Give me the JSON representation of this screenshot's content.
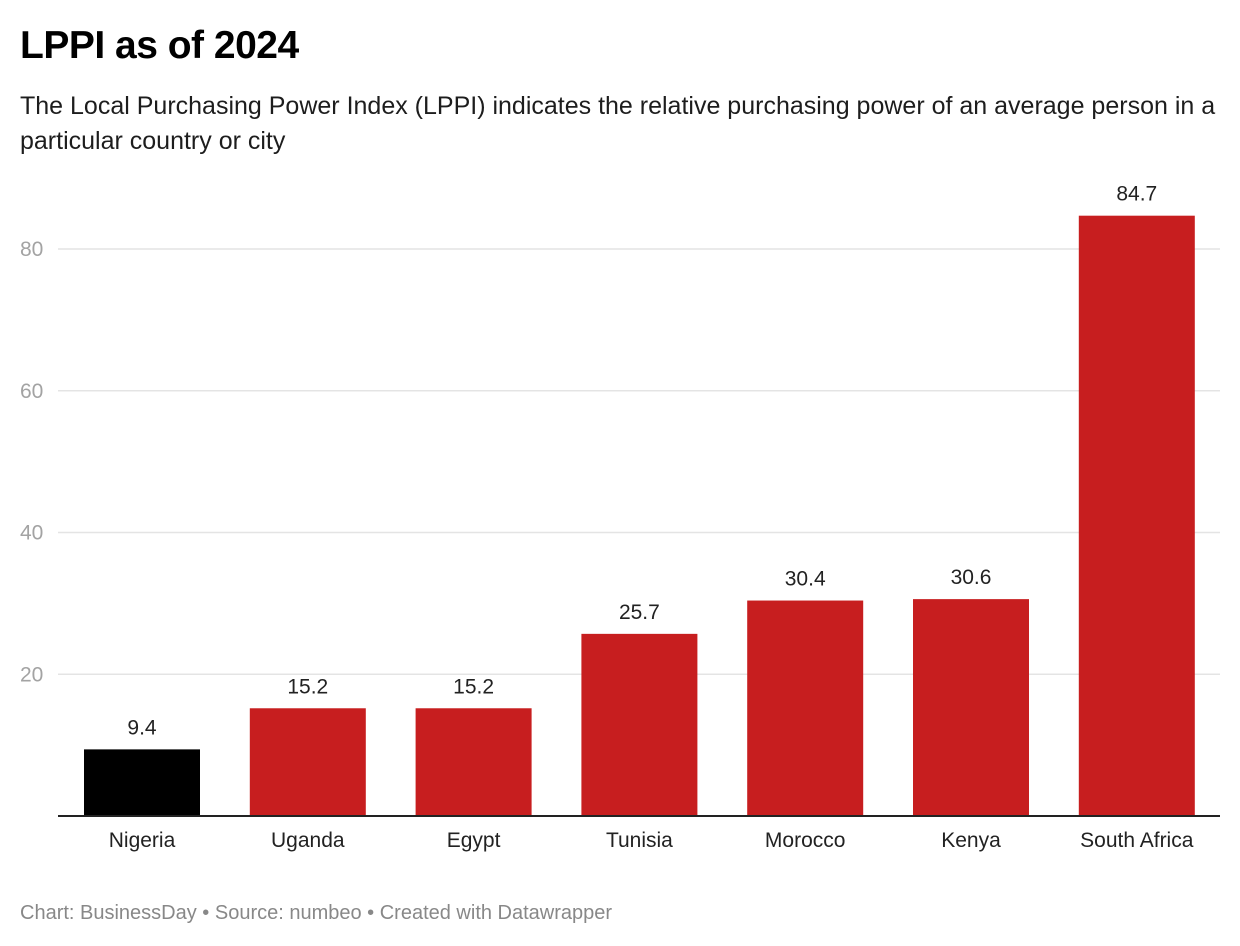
{
  "header": {
    "title": "LPPI as of 2024",
    "subtitle": "The Local Purchasing Power Index (LPPI) indicates the relative purchasing power of an average person in a particular country or city"
  },
  "footer": {
    "text": "Chart: BusinessDay • Source: numbeo • Created with Datawrapper"
  },
  "colors": {
    "highlight": "#000000",
    "default": "#c71e1f",
    "grid": "#e4e4e4",
    "tick_text": "#a3a3a3",
    "label_text": "#222222"
  },
  "chart_data": {
    "type": "bar",
    "title": "LPPI as of 2024",
    "subtitle": "The Local Purchasing Power Index (LPPI) indicates the relative purchasing power of an average person in a particular country or city",
    "xlabel": "",
    "ylabel": "",
    "categories": [
      "Nigeria",
      "Uganda",
      "Egypt",
      "Tunisia",
      "Morocco",
      "Kenya",
      "South Africa"
    ],
    "values": [
      9.4,
      15.2,
      15.2,
      25.7,
      30.4,
      30.6,
      84.7
    ],
    "value_labels": [
      "9.4",
      "15.2",
      "15.2",
      "25.7",
      "30.4",
      "30.6",
      "84.7"
    ],
    "highlighted": [
      "Nigeria"
    ],
    "bar_colors": [
      "#000000",
      "#c71e1f",
      "#c71e1f",
      "#c71e1f",
      "#c71e1f",
      "#c71e1f",
      "#c71e1f"
    ],
    "ylim": [
      0,
      80
    ],
    "yticks": [
      20,
      40,
      60,
      80
    ],
    "ytick_labels": [
      "20",
      "40",
      "60",
      "80"
    ],
    "grid": true,
    "legend": "none"
  }
}
